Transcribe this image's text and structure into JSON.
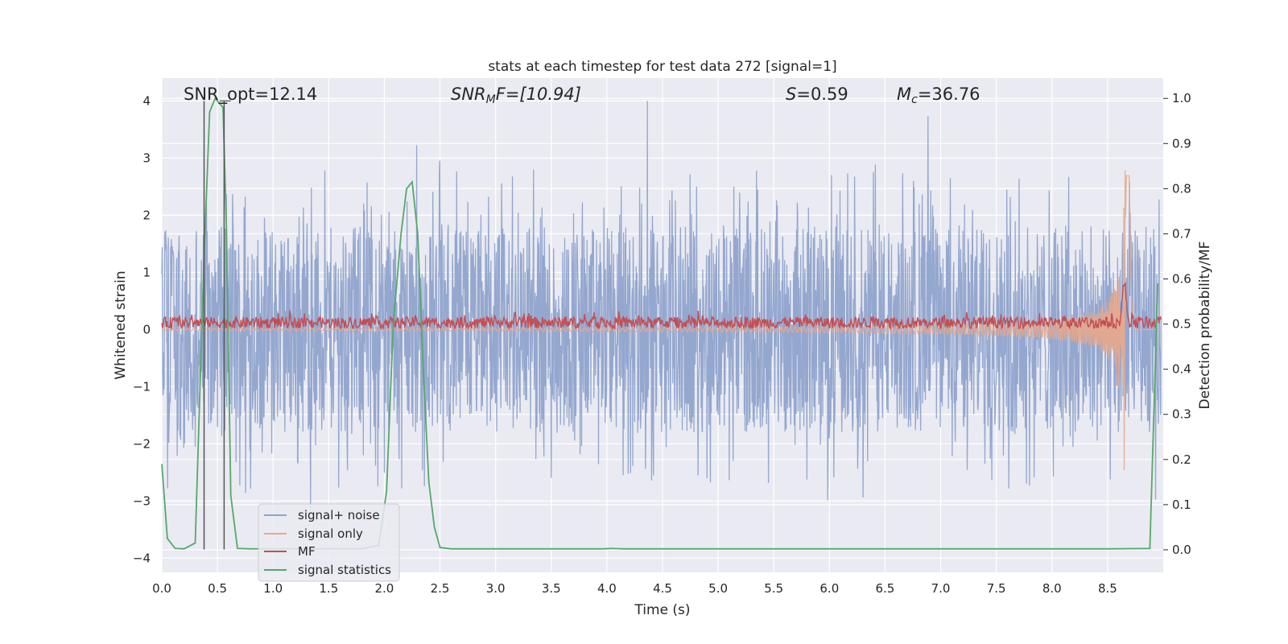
{
  "chart_data": {
    "type": "line",
    "title": "stats at each timestep for test data 272 [signal=1]",
    "xlabel": "Time (s)",
    "ylabel": "Whitened strain",
    "ylabel_right": "Detection probability/MF",
    "xlim": [
      0.0,
      9.0
    ],
    "ylim": [
      -4.25,
      4.4
    ],
    "ylim_right": [
      -0.05,
      1.045
    ],
    "x_ticks": [
      0.0,
      0.5,
      1.0,
      1.5,
      2.0,
      2.5,
      3.0,
      3.5,
      4.0,
      4.5,
      5.0,
      5.5,
      6.0,
      6.5,
      7.0,
      7.5,
      8.0,
      8.5
    ],
    "x_tick_labels": [
      "0.0",
      "0.5",
      "1.0",
      "1.5",
      "2.0",
      "2.5",
      "3.0",
      "3.5",
      "4.0",
      "4.5",
      "5.0",
      "5.5",
      "6.0",
      "6.5",
      "7.0",
      "7.5",
      "8.0",
      "8.5"
    ],
    "y_ticks": [
      4,
      3,
      2,
      1,
      0,
      -1,
      -2,
      -3,
      -4
    ],
    "y_tick_labels": [
      "4",
      "3",
      "2",
      "1",
      "0",
      "−1",
      "−2",
      "−3",
      "−4"
    ],
    "y_right_ticks": [
      1.0,
      0.9,
      0.8,
      0.7,
      0.6,
      0.5,
      0.4,
      0.3,
      0.2,
      0.1,
      0.0
    ],
    "y_right_tick_labels": [
      "1.0",
      "0.9",
      "0.8",
      "0.7",
      "0.6",
      "0.5",
      "0.4",
      "0.3",
      "0.2",
      "0.1",
      "0.0"
    ],
    "grid": true,
    "legend_position": "lower-left",
    "annotations": {
      "snr_opt": "SNR_opt=12.14",
      "snr_mf_main": "SNR",
      "snr_mf_sub": "M",
      "snr_mf_tail": "F=[10.94]",
      "s_main": "S",
      "s_tail": "=0.59",
      "mc_main": "M",
      "mc_sub": "c",
      "mc_tail": "=36.76"
    },
    "series": [
      {
        "name": "signal+ noise",
        "color": "#8fa3cc",
        "axis": "left",
        "description_values": {
          "amplitude_envelope": [
            -3.9,
            4.0
          ],
          "typical_range": [
            -2.4,
            2.6
          ]
        }
      },
      {
        "name": "signal only",
        "color": "#e8a88a",
        "axis": "left",
        "chirp_peak_time": 8.65,
        "chirp_peak_amplitude": 2.8
      },
      {
        "name": "MF",
        "color": "#c44e52",
        "axis": "left",
        "typical_range": [
          0.0,
          0.35
        ],
        "peak_time": 8.65,
        "peak_value": 0.7
      },
      {
        "name": "signal statistics",
        "color": "#55a868",
        "axis": "right",
        "x": [
          0.0,
          0.05,
          0.12,
          0.2,
          0.3,
          0.38,
          0.43,
          0.48,
          0.55,
          0.58,
          0.62,
          0.68,
          0.8,
          1.0,
          1.2,
          1.4,
          1.6,
          1.8,
          1.95,
          2.02,
          2.08,
          2.15,
          2.2,
          2.25,
          2.3,
          2.35,
          2.4,
          2.45,
          2.5,
          2.6,
          3.0,
          3.5,
          3.95,
          4.05,
          4.15,
          5.0,
          6.0,
          7.0,
          8.0,
          8.5,
          8.88,
          8.95
        ],
        "values": [
          0.19,
          0.025,
          0.003,
          0.002,
          0.015,
          0.65,
          0.97,
          1.0,
          0.98,
          0.72,
          0.12,
          0.003,
          0.002,
          0.002,
          0.002,
          0.002,
          0.002,
          0.002,
          0.01,
          0.13,
          0.5,
          0.7,
          0.8,
          0.815,
          0.7,
          0.4,
          0.15,
          0.05,
          0.005,
          0.002,
          0.002,
          0.002,
          0.002,
          0.003,
          0.002,
          0.002,
          0.002,
          0.002,
          0.002,
          0.002,
          0.003,
          0.59
        ]
      }
    ],
    "markers": {
      "vertical_lines_x": [
        0.38,
        0.56
      ]
    }
  }
}
